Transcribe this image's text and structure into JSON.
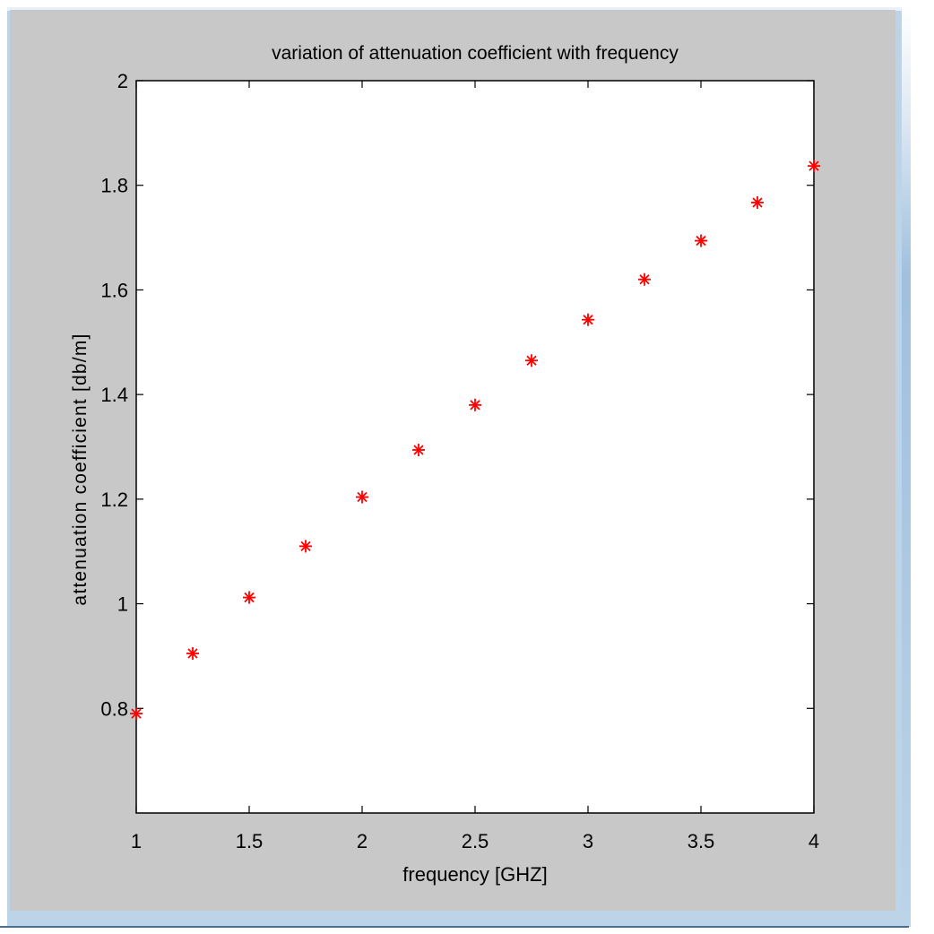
{
  "colors": {
    "figure_background": "#c8c8c8",
    "axes_background": "#ffffff",
    "marker": "#ff0000",
    "window_border": "#bcd3e8"
  },
  "chart_data": {
    "type": "scatter",
    "title": "variation of attenuation coefficient with frequency",
    "xlabel": "frequency [GHZ]",
    "ylabel": "attenuation coefficient [db/m]",
    "xlim": [
      1,
      4
    ],
    "ylim": [
      0.6,
      2
    ],
    "xticks": [
      1,
      1.5,
      2,
      2.5,
      3,
      3.5,
      4
    ],
    "xtick_labels": [
      "1",
      "1.5",
      "2",
      "2.5",
      "3",
      "3.5",
      "4"
    ],
    "yticks": [
      0.8,
      1,
      1.2,
      1.4,
      1.6,
      1.8,
      2
    ],
    "ytick_labels": [
      "0.8",
      "1",
      "1.2",
      "1.4",
      "1.6",
      "1.8",
      "2"
    ],
    "marker": "asterisk",
    "grid": false,
    "legend": false,
    "series": [
      {
        "x": [
          1,
          1.25,
          1.5,
          1.75,
          2,
          2.25,
          2.5,
          2.75,
          3,
          3.25,
          3.5,
          3.75,
          4
        ],
        "y": [
          0.79,
          0.905,
          1.012,
          1.11,
          1.204,
          1.294,
          1.38,
          1.465,
          1.543,
          1.62,
          1.694,
          1.767,
          1.837
        ]
      }
    ]
  }
}
